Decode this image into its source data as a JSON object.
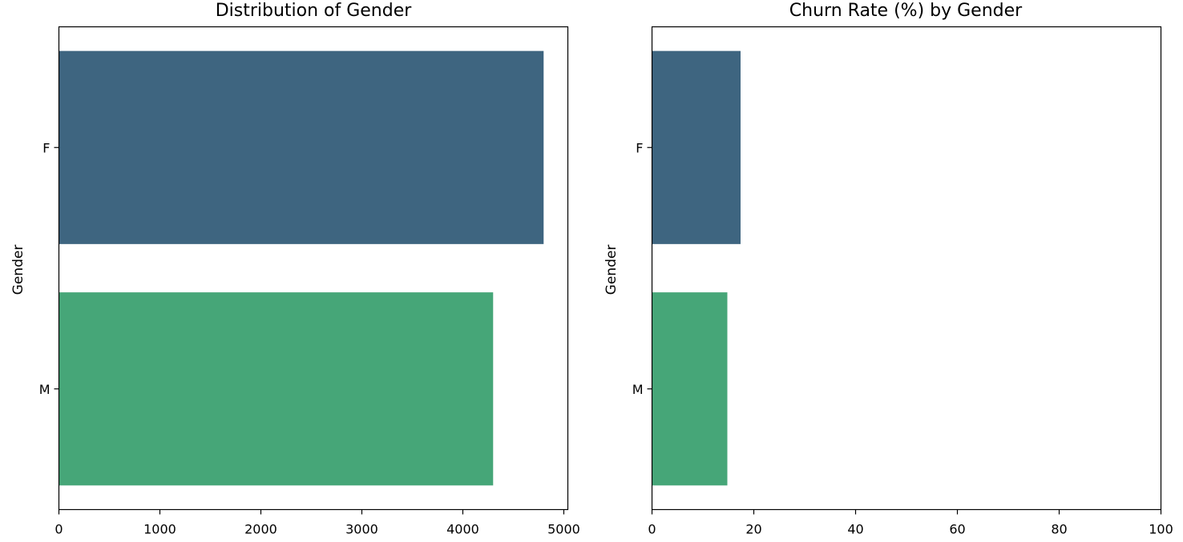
{
  "chart_data": [
    {
      "type": "bar",
      "orientation": "horizontal",
      "title": "Distribution of Gender",
      "xlabel": "",
      "ylabel": "Gender",
      "categories": [
        "F",
        "M"
      ],
      "values": [
        4800,
        4300
      ],
      "xlim": [
        0,
        5040
      ],
      "xticks": [
        0,
        1000,
        2000,
        3000,
        4000,
        5000
      ],
      "colors": [
        "#3e6580",
        "#46a678"
      ],
      "grid": false
    },
    {
      "type": "bar",
      "orientation": "horizontal",
      "title": "Churn Rate (%) by Gender",
      "xlabel": "",
      "ylabel": "Gender",
      "categories": [
        "F",
        "M"
      ],
      "values": [
        17.4,
        14.8
      ],
      "xlim": [
        0,
        100
      ],
      "xticks": [
        0,
        20,
        40,
        60,
        80,
        100
      ],
      "colors": [
        "#3e6580",
        "#46a678"
      ],
      "grid": false
    }
  ]
}
